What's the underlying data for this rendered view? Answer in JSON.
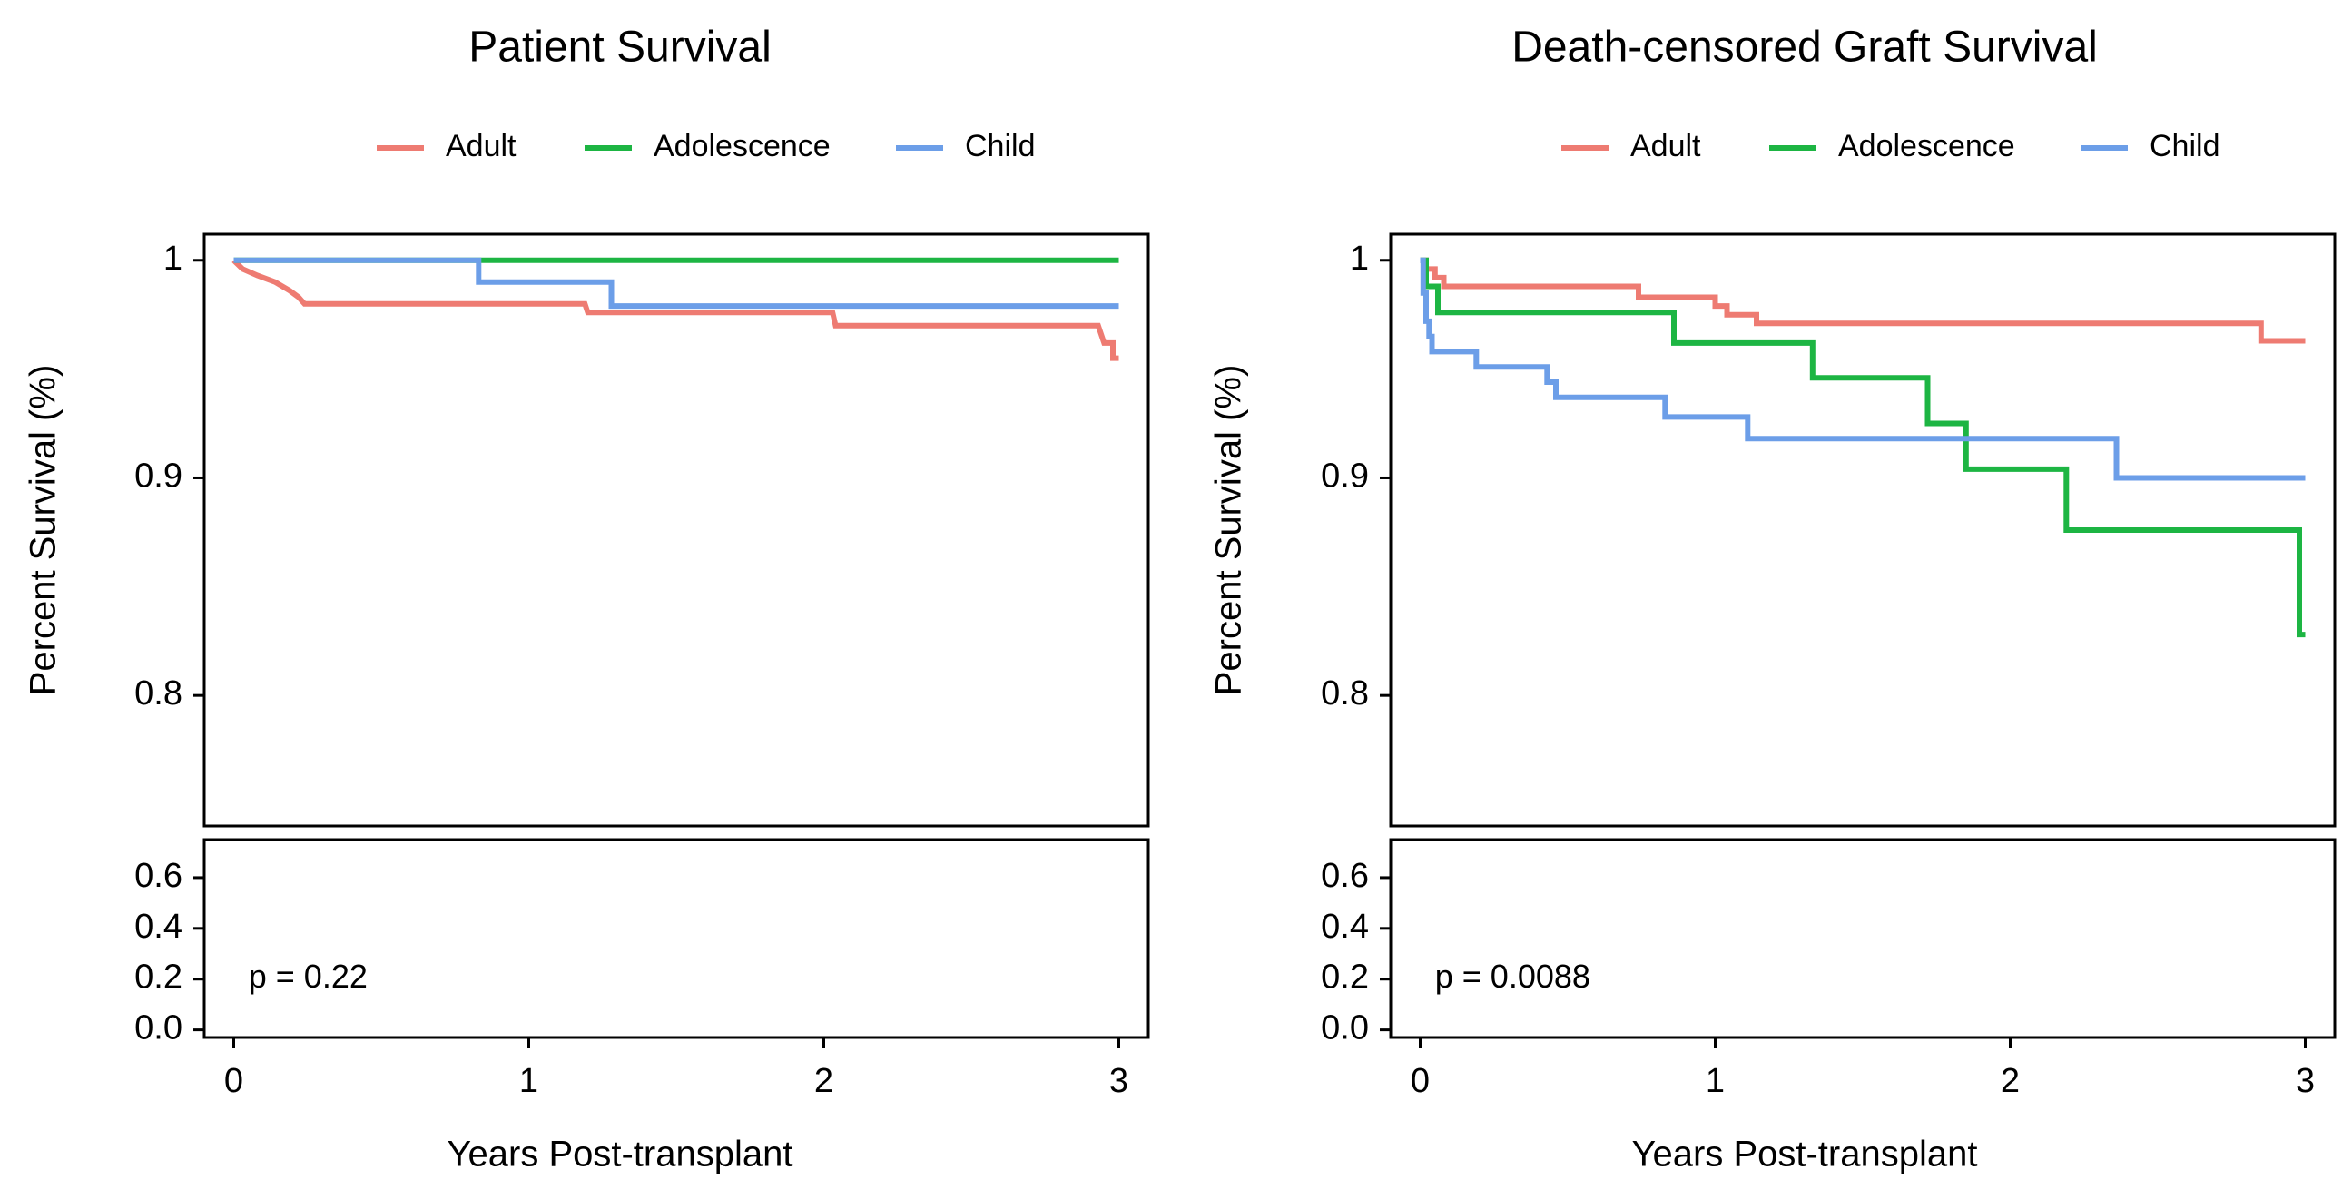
{
  "chart_data": [
    {
      "type": "line",
      "step": true,
      "title": "Patient Survival",
      "xlabel": "Years Post-transplant",
      "ylabel": "Percent Survival (%)",
      "xlim": [
        -0.1,
        3.1
      ],
      "ylim": [
        0.74,
        1.012
      ],
      "x_ticks": [
        0,
        1,
        2,
        3
      ],
      "y_ticks": [
        0.8,
        0.9,
        1
      ],
      "y_tick_labels": [
        "0.8",
        "0.9",
        "1"
      ],
      "x_tick_labels": [
        "0",
        "1",
        "2",
        "3"
      ],
      "legend_position": "top",
      "grid": false,
      "series": [
        {
          "name": "Adult",
          "color": "#ee7b72",
          "points": [
            [
              0,
              1
            ],
            [
              0.03,
              0.996
            ],
            [
              0.08,
              0.993
            ],
            [
              0.14,
              0.99
            ],
            [
              0.19,
              0.986
            ],
            [
              0.22,
              0.983
            ],
            [
              0.24,
              0.98
            ],
            [
              1.19,
              0.98
            ],
            [
              1.2,
              0.976
            ],
            [
              2.03,
              0.976
            ],
            [
              2.04,
              0.97
            ],
            [
              2.93,
              0.97
            ],
            [
              2.95,
              0.962
            ],
            [
              2.98,
              0.962
            ],
            [
              2.98,
              0.955
            ],
            [
              3,
              0.955
            ]
          ]
        },
        {
          "name": "Adolescence",
          "color": "#1db543",
          "points": [
            [
              0,
              1
            ],
            [
              3,
              1
            ]
          ]
        },
        {
          "name": "Child",
          "color": "#6c9ee8",
          "points": [
            [
              0,
              1
            ],
            [
              0.83,
              1
            ],
            [
              0.83,
              0.99
            ],
            [
              1.28,
              0.99
            ],
            [
              1.28,
              0.979
            ],
            [
              3,
              0.979
            ]
          ]
        }
      ],
      "risk_table": {
        "y_ticks": [
          0,
          0.2,
          0.4,
          0.6
        ],
        "y_tick_labels": [
          "0.0",
          "0.2",
          "0.4",
          "0.6"
        ],
        "ylim": [
          -0.03,
          0.75
        ],
        "annotation": "p = 0.22",
        "annotation_x": 0.05,
        "annotation_y": 0.2
      }
    },
    {
      "type": "line",
      "step": true,
      "title": "Death-censored Graft Survival",
      "xlabel": "Years Post-transplant",
      "ylabel": "Percent Survival (%)",
      "xlim": [
        -0.1,
        3.1
      ],
      "ylim": [
        0.74,
        1.012
      ],
      "x_ticks": [
        0,
        1,
        2,
        3
      ],
      "y_ticks": [
        0.8,
        0.9,
        1
      ],
      "y_tick_labels": [
        "0.8",
        "0.9",
        "1"
      ],
      "x_tick_labels": [
        "0",
        "1",
        "2",
        "3"
      ],
      "legend_position": "top",
      "grid": false,
      "series": [
        {
          "name": "Adult",
          "color": "#ee7b72",
          "points": [
            [
              0,
              1
            ],
            [
              0.02,
              1
            ],
            [
              0.02,
              0.996
            ],
            [
              0.05,
              0.996
            ],
            [
              0.05,
              0.992
            ],
            [
              0.08,
              0.992
            ],
            [
              0.08,
              0.988
            ],
            [
              0.74,
              0.988
            ],
            [
              0.74,
              0.983
            ],
            [
              1,
              0.983
            ],
            [
              1,
              0.979
            ],
            [
              1.04,
              0.979
            ],
            [
              1.04,
              0.975
            ],
            [
              1.14,
              0.975
            ],
            [
              1.14,
              0.971
            ],
            [
              2.85,
              0.971
            ],
            [
              2.85,
              0.963
            ],
            [
              3,
              0.963
            ]
          ]
        },
        {
          "name": "Adolescence",
          "color": "#1db543",
          "points": [
            [
              0,
              1
            ],
            [
              0.02,
              1
            ],
            [
              0.02,
              0.988
            ],
            [
              0.06,
              0.988
            ],
            [
              0.06,
              0.976
            ],
            [
              0.86,
              0.976
            ],
            [
              0.86,
              0.962
            ],
            [
              1.33,
              0.962
            ],
            [
              1.33,
              0.946
            ],
            [
              1.72,
              0.946
            ],
            [
              1.72,
              0.925
            ],
            [
              1.85,
              0.925
            ],
            [
              1.85,
              0.904
            ],
            [
              2.19,
              0.904
            ],
            [
              2.19,
              0.876
            ],
            [
              2.98,
              0.876
            ],
            [
              2.98,
              0.828
            ],
            [
              3,
              0.828
            ]
          ]
        },
        {
          "name": "Child",
          "color": "#6c9ee8",
          "points": [
            [
              0,
              1
            ],
            [
              0.01,
              1
            ],
            [
              0.01,
              0.985
            ],
            [
              0.02,
              0.985
            ],
            [
              0.02,
              0.972
            ],
            [
              0.03,
              0.972
            ],
            [
              0.03,
              0.965
            ],
            [
              0.04,
              0.965
            ],
            [
              0.04,
              0.958
            ],
            [
              0.19,
              0.958
            ],
            [
              0.19,
              0.951
            ],
            [
              0.43,
              0.951
            ],
            [
              0.43,
              0.944
            ],
            [
              0.46,
              0.944
            ],
            [
              0.46,
              0.937
            ],
            [
              0.83,
              0.937
            ],
            [
              0.83,
              0.928
            ],
            [
              1.11,
              0.928
            ],
            [
              1.11,
              0.918
            ],
            [
              2.36,
              0.918
            ],
            [
              2.36,
              0.9
            ],
            [
              3,
              0.9
            ]
          ]
        }
      ],
      "risk_table": {
        "y_ticks": [
          0,
          0.2,
          0.4,
          0.6
        ],
        "y_tick_labels": [
          "0.0",
          "0.2",
          "0.4",
          "0.6"
        ],
        "ylim": [
          -0.03,
          0.75
        ],
        "annotation": "p = 0.0088",
        "annotation_x": 0.05,
        "annotation_y": 0.2
      }
    }
  ]
}
